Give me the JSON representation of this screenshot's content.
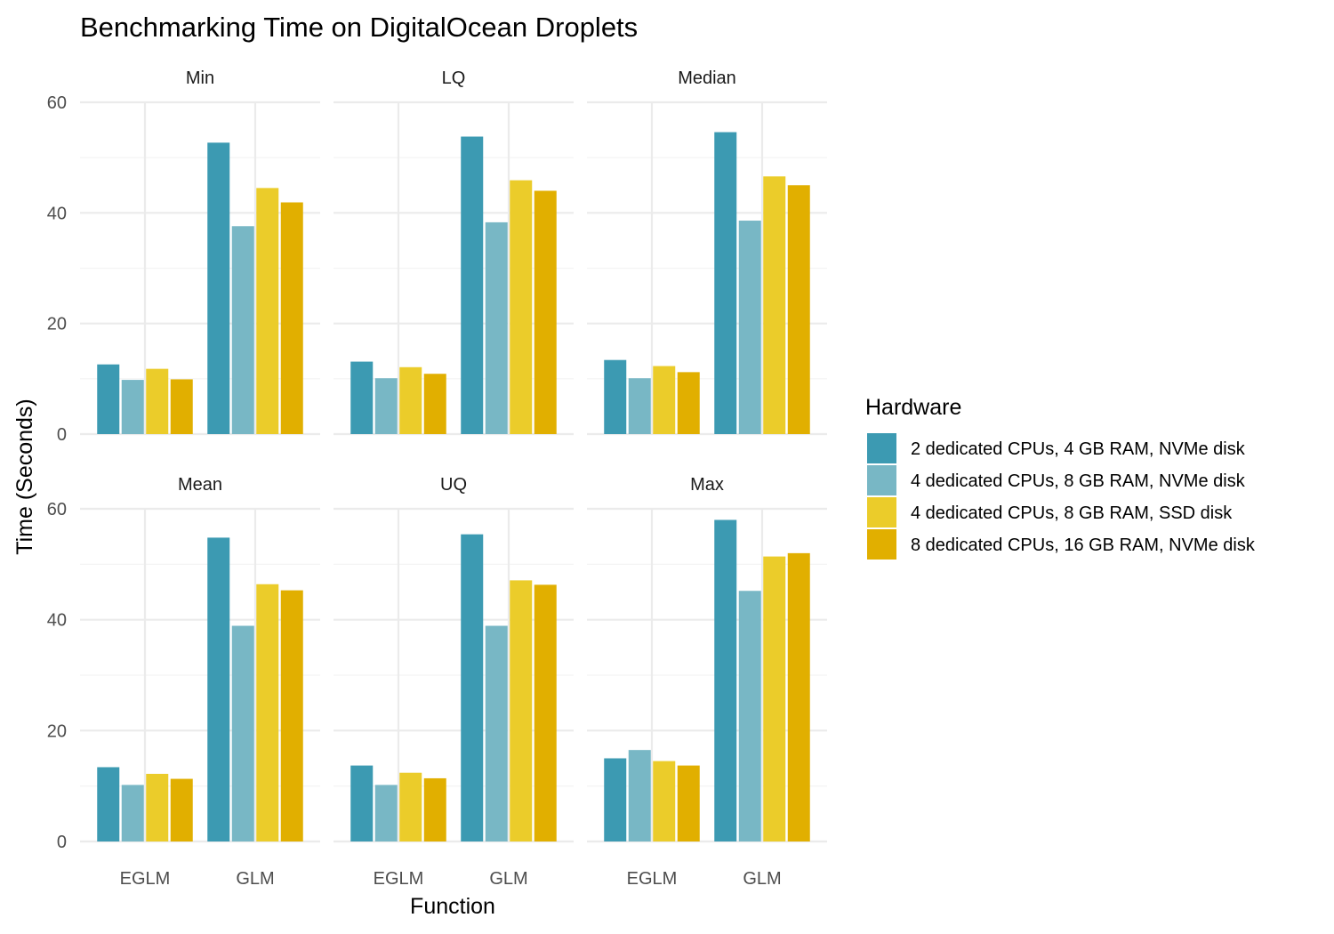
{
  "chart_data": {
    "type": "bar",
    "title": "Benchmarking Time on DigitalOcean Droplets",
    "xlabel": "Function",
    "ylabel": "Time (Seconds)",
    "ylim": [
      0,
      60
    ],
    "y_ticks": [
      0,
      20,
      40,
      60
    ],
    "categories": [
      "EGLM",
      "GLM"
    ],
    "grid": true,
    "legend": {
      "title": "Hardware",
      "position": "right"
    },
    "series": [
      {
        "name": "2 dedicated CPUs, 4 GB RAM, NVMe disk",
        "color": "#3C9AB2"
      },
      {
        "name": "4 dedicated CPUs, 8 GB RAM, NVMe disk",
        "color": "#78B7C5"
      },
      {
        "name": "4 dedicated CPUs, 8 GB RAM, SSD disk",
        "color": "#EBCC2A"
      },
      {
        "name": "8 dedicated CPUs, 16 GB RAM, NVMe disk",
        "color": "#E1AF00"
      }
    ],
    "facets": [
      {
        "label": "Min",
        "values": {
          "EGLM": [
            12.6,
            9.8,
            11.8,
            9.9
          ],
          "GLM": [
            52.7,
            37.6,
            44.5,
            41.9
          ]
        }
      },
      {
        "label": "LQ",
        "values": {
          "EGLM": [
            13.1,
            10.1,
            12.1,
            10.9
          ],
          "GLM": [
            53.8,
            38.3,
            45.9,
            44.0
          ]
        }
      },
      {
        "label": "Median",
        "values": {
          "EGLM": [
            13.4,
            10.1,
            12.3,
            11.2
          ],
          "GLM": [
            54.6,
            38.6,
            46.6,
            45.0
          ]
        }
      },
      {
        "label": "Mean",
        "values": {
          "EGLM": [
            13.4,
            10.2,
            12.2,
            11.3
          ],
          "GLM": [
            54.8,
            38.9,
            46.4,
            45.3
          ]
        }
      },
      {
        "label": "UQ",
        "values": {
          "EGLM": [
            13.7,
            10.2,
            12.4,
            11.4
          ],
          "GLM": [
            55.4,
            38.9,
            47.1,
            46.3
          ]
        }
      },
      {
        "label": "Max",
        "values": {
          "EGLM": [
            15.0,
            16.5,
            14.5,
            13.7
          ],
          "GLM": [
            58.0,
            45.2,
            51.4,
            52.0
          ]
        }
      }
    ]
  }
}
